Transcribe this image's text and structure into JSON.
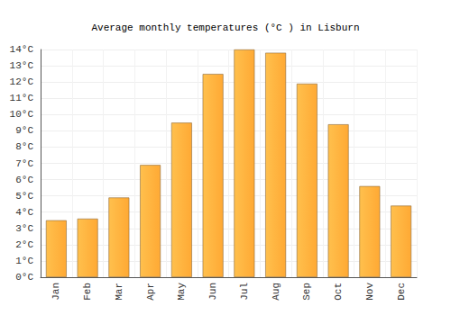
{
  "chart_data": {
    "type": "bar",
    "title": "Average monthly temperatures (°C ) in Lisburn",
    "categories": [
      "Jan",
      "Feb",
      "Mar",
      "Apr",
      "May",
      "Jun",
      "Jul",
      "Aug",
      "Sep",
      "Oct",
      "Nov",
      "Dec"
    ],
    "values": [
      3.5,
      3.6,
      4.9,
      6.9,
      9.5,
      12.5,
      14.0,
      13.8,
      11.9,
      9.4,
      5.6,
      4.4
    ],
    "color": "#ffa934",
    "ylim": [
      0,
      14
    ],
    "yticks": [
      {
        "value": 0,
        "label": "0°C"
      },
      {
        "value": 1,
        "label": "1°C"
      },
      {
        "value": 2,
        "label": "2°C"
      },
      {
        "value": 3,
        "label": "3°C"
      },
      {
        "value": 4,
        "label": "4°C"
      },
      {
        "value": 5,
        "label": "5°C"
      },
      {
        "value": 6,
        "label": "6°C"
      },
      {
        "value": 7,
        "label": "7°C"
      },
      {
        "value": 8,
        "label": "8°C"
      },
      {
        "value": 9,
        "label": "9°C"
      },
      {
        "value": 10,
        "label": "10°C"
      },
      {
        "value": 11,
        "label": "11°C"
      },
      {
        "value": 12,
        "label": "12°C"
      },
      {
        "value": 13,
        "label": "13°C"
      },
      {
        "value": 14,
        "label": "14°C"
      }
    ],
    "grid": true
  }
}
